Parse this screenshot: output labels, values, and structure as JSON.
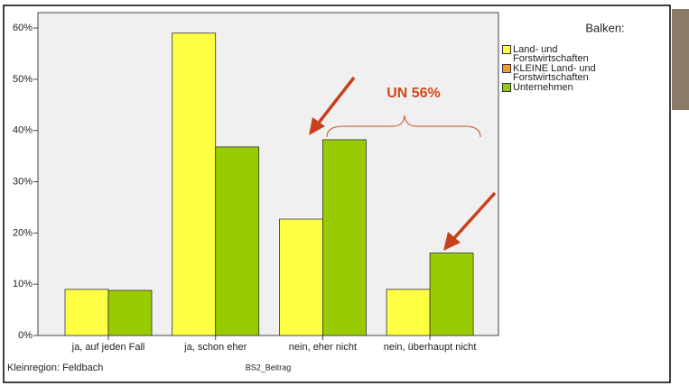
{
  "chart_data": {
    "type": "bar",
    "categories": [
      "ja, auf jeden Fall",
      "ja, schon eher",
      "nein, eher nicht",
      "nein, überhaupt nicht"
    ],
    "series": [
      {
        "name": "Land- und Forstwirtschaften",
        "color": "#ffff44",
        "values": [
          9,
          59,
          22.7,
          9
        ]
      },
      {
        "name": "KLEINE Land- und Forstwirtschaften",
        "color": "#f39a2e",
        "values": [
          null,
          null,
          null,
          null
        ]
      },
      {
        "name": "Unternehmen",
        "color": "#99cc00",
        "values": [
          8.8,
          36.8,
          38.2,
          16.1
        ]
      }
    ],
    "ylim": [
      0,
      63
    ],
    "yticks": [
      {
        "value": 0,
        "label": "0%"
      },
      {
        "value": 10,
        "label": "10%"
      },
      {
        "value": 20,
        "label": "20%"
      },
      {
        "value": 30,
        "label": "30%"
      },
      {
        "value": 40,
        "label": "40%"
      },
      {
        "value": 50,
        "label": "50%"
      },
      {
        "value": 60,
        "label": "60%"
      }
    ],
    "x_label": "BS2_Beitrag",
    "footnote": "Kleinregion: Feldbach",
    "legend_title": "Balken:",
    "annotation": "UN 56%"
  }
}
